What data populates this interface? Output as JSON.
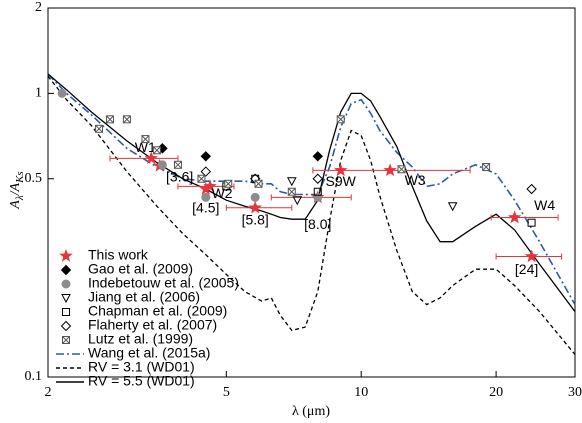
{
  "chart_data": {
    "type": "scatter",
    "xlabel": "λ (μm)",
    "ylabel": [
      "A",
      "λ",
      "/A",
      "Ks"
    ],
    "xscale": "log",
    "yscale": "log",
    "xlim": [
      2,
      30
    ],
    "ylim": [
      0.1,
      2
    ],
    "xticks": [
      2,
      5,
      10,
      20,
      30
    ],
    "yticks": [
      0.1,
      0.5,
      1,
      2
    ],
    "series": [
      {
        "name": "This work",
        "mode": "markers",
        "marker": "star",
        "color": "#e8333a",
        "filled": true,
        "x": [
          3.4,
          3.55,
          4.6,
          4.5,
          5.8,
          8.0,
          9.0,
          11.6,
          22,
          24
        ],
        "values": [
          0.59,
          0.555,
          0.47,
          0.46,
          0.395,
          0.43,
          0.535,
          0.535,
          0.365,
          0.266
        ],
        "xerr_low": [
          2.75,
          null,
          3.9,
          null,
          5.0,
          6.3,
          null,
          7.8,
          19.5,
          20
        ],
        "xerr_high": [
          3.9,
          null,
          5.2,
          null,
          7.0,
          9.5,
          null,
          17.5,
          27.5,
          28
        ],
        "point_labels": [
          "W1",
          "[3.6]",
          "W2",
          "[4.5]",
          "[5.8]",
          "[8.0]",
          "S9W",
          "W3",
          "W4",
          "[24]"
        ]
      },
      {
        "name": "Gao et al. (2009)",
        "mode": "markers",
        "marker": "diamond",
        "color": "#000000",
        "filled": true,
        "x": [
          3.6,
          4.5,
          8.0
        ],
        "values": [
          0.64,
          0.6,
          0.6
        ]
      },
      {
        "name": "Indebetouw et al. (2005)",
        "mode": "markers",
        "marker": "circle",
        "color": "#8c8c8c",
        "filled": true,
        "x": [
          2.15,
          3.6,
          4.5,
          5.8,
          8.0
        ],
        "values": [
          1.0,
          0.56,
          0.43,
          0.43,
          0.43
        ]
      },
      {
        "name": "Jiang et al. (2006)",
        "mode": "markers",
        "marker": "triangle-down",
        "color": "#000000",
        "filled": false,
        "x": [
          7.0,
          7.2,
          16
        ],
        "values": [
          0.49,
          0.42,
          0.4
        ]
      },
      {
        "name": "Chapman et al. (2009)",
        "mode": "markers",
        "marker": "square",
        "color": "#000000",
        "filled": false,
        "x": [
          5.0,
          5.8,
          8.0,
          24
        ],
        "values": [
          0.47,
          0.5,
          0.45,
          0.35
        ]
      },
      {
        "name": "Flaherty et al. (2007)",
        "mode": "markers",
        "marker": "diamond",
        "color": "#000000",
        "filled": false,
        "x": [
          3.6,
          4.5,
          5.8,
          8.0,
          24
        ],
        "values": [
          0.64,
          0.53,
          0.5,
          0.5,
          0.46
        ]
      },
      {
        "name": "Lutz et al. (1999)",
        "mode": "markers",
        "marker": "crossed-square",
        "color": "#555555",
        "filled": false,
        "x": [
          2.6,
          2.75,
          3.0,
          3.3,
          3.5,
          3.9,
          4.4,
          5.05,
          5.9,
          7.0,
          9.0,
          12.3,
          19
        ],
        "values": [
          0.75,
          0.81,
          0.81,
          0.69,
          0.63,
          0.56,
          0.5,
          0.48,
          0.48,
          0.45,
          0.81,
          0.54,
          0.55
        ]
      },
      {
        "name": "Wang et al. (2015a)",
        "mode": "line",
        "style": "dashdot",
        "color": "#2a5caa",
        "x": [
          2,
          2.2,
          2.5,
          3,
          3.5,
          4,
          4.5,
          5,
          5.5,
          6,
          6.3,
          6.6,
          7,
          7.5,
          8,
          8.5,
          9,
          9.5,
          10,
          10.5,
          11,
          12,
          13,
          14,
          15,
          16,
          18,
          20,
          22,
          25,
          30
        ],
        "values": [
          1.17,
          1.0,
          0.84,
          0.64,
          0.55,
          0.5,
          0.49,
          0.49,
          0.49,
          0.48,
          0.48,
          0.45,
          0.44,
          0.44,
          0.44,
          0.55,
          0.76,
          0.92,
          0.95,
          0.85,
          0.74,
          0.62,
          0.55,
          0.47,
          0.48,
          0.52,
          0.56,
          0.52,
          0.42,
          0.3,
          0.18
        ]
      },
      {
        "name": "RV = 3.1 (WD01)",
        "mode": "line",
        "style": "dashed",
        "color": "#000000",
        "x": [
          2,
          2.2,
          2.5,
          3,
          3.5,
          4,
          4.5,
          5,
          5.5,
          6,
          6.3,
          6.6,
          7,
          7.5,
          8,
          8.5,
          9,
          9.5,
          10,
          10.5,
          11,
          12,
          13,
          14,
          15,
          16,
          18,
          20,
          22,
          25,
          30
        ],
        "values": [
          1.15,
          0.95,
          0.77,
          0.53,
          0.4,
          0.32,
          0.27,
          0.23,
          0.2,
          0.185,
          0.19,
          0.165,
          0.146,
          0.15,
          0.2,
          0.355,
          0.58,
          0.74,
          0.71,
          0.58,
          0.435,
          0.28,
          0.2,
          0.18,
          0.19,
          0.21,
          0.24,
          0.24,
          0.21,
          0.17,
          0.12
        ]
      },
      {
        "name": "RV = 5.5 (WD01)",
        "mode": "line",
        "style": "solid",
        "color": "#000000",
        "x": [
          2,
          2.2,
          2.5,
          3,
          3.5,
          4,
          4.5,
          5,
          5.5,
          6,
          6.3,
          6.6,
          7,
          7.5,
          8,
          8.5,
          9,
          9.5,
          10,
          10.5,
          11,
          12,
          13,
          14,
          15,
          16,
          18,
          20,
          22,
          25,
          30
        ],
        "values": [
          1.17,
          1.03,
          0.86,
          0.68,
          0.57,
          0.5,
          0.46,
          0.42,
          0.4,
          0.385,
          0.375,
          0.365,
          0.36,
          0.36,
          0.42,
          0.63,
          0.86,
          1.0,
          1.0,
          0.94,
          0.83,
          0.65,
          0.47,
          0.355,
          0.3,
          0.3,
          0.34,
          0.375,
          0.33,
          0.25,
          0.17
        ]
      }
    ]
  }
}
